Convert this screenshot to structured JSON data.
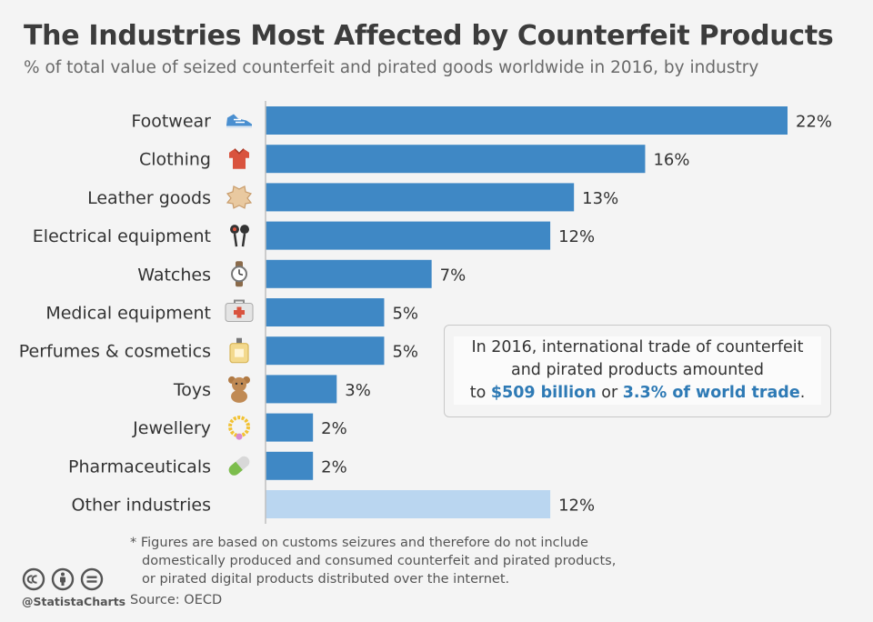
{
  "chart_data": {
    "type": "bar",
    "orientation": "horizontal",
    "title": "The Industries Most Affected by Counterfeit Products",
    "subtitle": "% of total value of seized counterfeit and pirated goods worldwide in 2016, by industry",
    "categories": [
      "Footwear",
      "Clothing",
      "Leather goods",
      "Electrical equipment",
      "Watches",
      "Medical equipment",
      "Perfumes & cosmetics",
      "Toys",
      "Jewellery",
      "Pharmaceuticals",
      "Other industries"
    ],
    "values": [
      22,
      16,
      13,
      12,
      7,
      5,
      5,
      3,
      2,
      2,
      12
    ],
    "value_labels": [
      "22%",
      "16%",
      "13%",
      "12%",
      "7%",
      "5%",
      "5%",
      "3%",
      "2%",
      "2%",
      "12%"
    ],
    "icons": [
      "sneaker-icon",
      "shirt-icon",
      "leather-hide-icon",
      "earphones-icon",
      "wristwatch-icon",
      "medical-kit-icon",
      "perfume-bottle-icon",
      "teddy-bear-icon",
      "necklace-icon",
      "pill-capsule-icon",
      ""
    ],
    "colors": [
      "#3f88c5",
      "#3f88c5",
      "#3f88c5",
      "#3f88c5",
      "#3f88c5",
      "#3f88c5",
      "#3f88c5",
      "#3f88c5",
      "#3f88c5",
      "#3f88c5",
      "#bad6f0"
    ],
    "xlim": [
      0,
      22
    ],
    "grid": false,
    "xlabel": "",
    "ylabel": ""
  },
  "callout": {
    "line1": "In 2016, international trade of counterfeit",
    "line2": "and pirated products amounted",
    "line3_pre": "to ",
    "amount": "$509 billion",
    "line3_mid": " or ",
    "share": "3.3% of world trade",
    "line3_post": "."
  },
  "footnote": {
    "line1": "* Figures are based on customs seizures and therefore do not include",
    "line2": "domestically produced and consumed counterfeit and pirated products,",
    "line3": "or pirated digital products distributed over the internet."
  },
  "footer": {
    "handle": "@StatistaCharts",
    "source": "Source: OECD",
    "license_icons": [
      "cc-icon",
      "attribution-icon",
      "no-derivatives-icon"
    ]
  },
  "colors": {
    "bar": "#3f88c5",
    "bar_other": "#bad6f0",
    "highlight": "#2e7ab5",
    "background": "#f4f4f4"
  }
}
